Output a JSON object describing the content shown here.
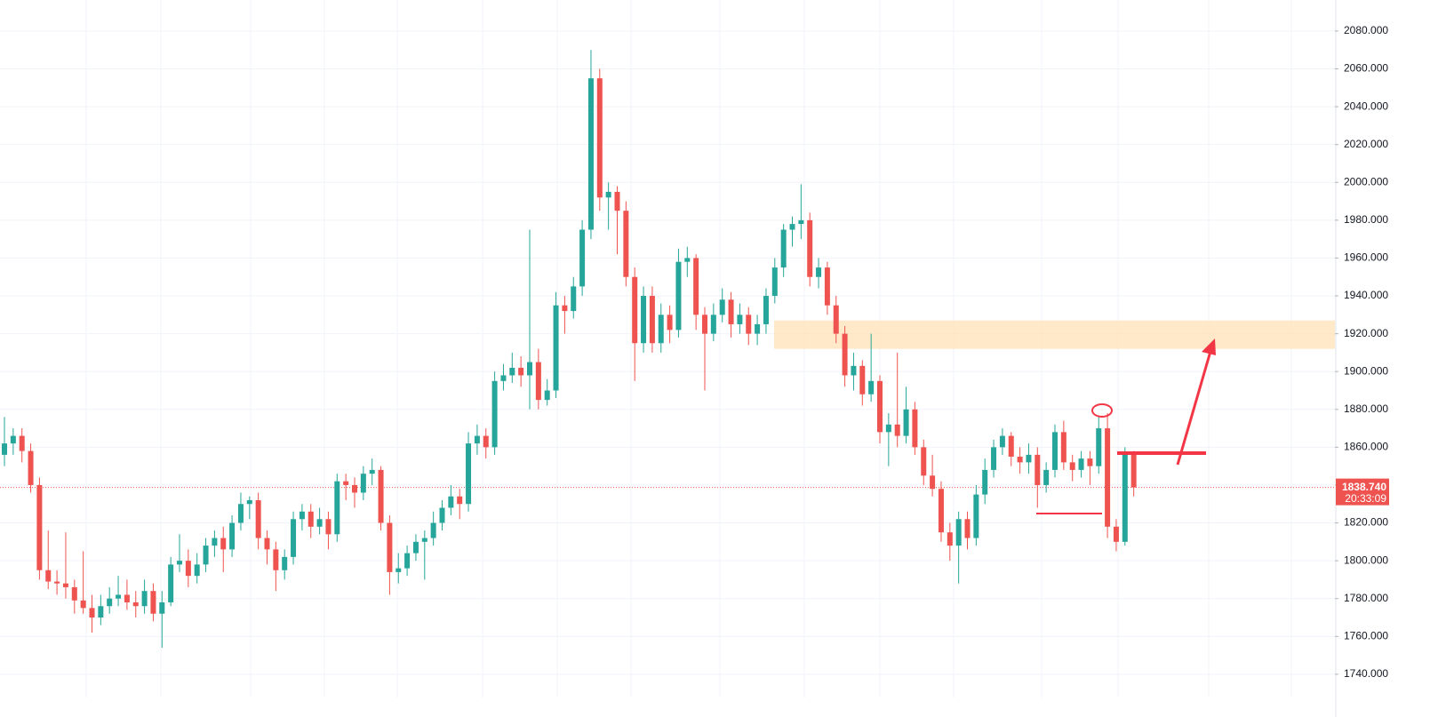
{
  "chart_data": {
    "type": "candlestick",
    "up_color": "#26a69a",
    "down_color": "#ef5350",
    "ylim": [
      1717.4,
      2096.4
    ],
    "yticks": [
      {
        "value": 1740,
        "label": "1740.000"
      },
      {
        "value": 1760,
        "label": "1760.000"
      },
      {
        "value": 1780,
        "label": "1780.000"
      },
      {
        "value": 1800,
        "label": "1800.000"
      },
      {
        "value": 1820,
        "label": "1820.000"
      },
      {
        "value": 1840,
        "label": "1840.000"
      },
      {
        "value": 1860,
        "label": "1860.000"
      },
      {
        "value": 1880,
        "label": "1880.000"
      },
      {
        "value": 1900,
        "label": "1900.000"
      },
      {
        "value": 1920,
        "label": "1920.000"
      },
      {
        "value": 1940,
        "label": "1940.000"
      },
      {
        "value": 1960,
        "label": "1960.000"
      },
      {
        "value": 1980,
        "label": "1980.000"
      },
      {
        "value": 2000,
        "label": "2000.000"
      },
      {
        "value": 2020,
        "label": "2020.000"
      },
      {
        "value": 2040,
        "label": "2040.000"
      },
      {
        "value": 2060,
        "label": "2060.000"
      },
      {
        "value": 2080,
        "label": "2080.000"
      }
    ],
    "grid": true,
    "last_price": {
      "value": 1838.74,
      "label": "1838.740"
    },
    "countdown": "20:33:09",
    "zone": [
      1912,
      1927
    ],
    "ohlc": [
      [
        1856,
        1876,
        1850,
        1862
      ],
      [
        1862,
        1870,
        1856,
        1866
      ],
      [
        1866,
        1870,
        1852,
        1858
      ],
      [
        1858,
        1862,
        1836,
        1840
      ],
      [
        1840,
        1844,
        1790,
        1795
      ],
      [
        1795,
        1816,
        1785,
        1789
      ],
      [
        1789,
        1795,
        1782,
        1788
      ],
      [
        1788,
        1815,
        1780,
        1786
      ],
      [
        1786,
        1790,
        1772,
        1779
      ],
      [
        1779,
        1805,
        1772,
        1775
      ],
      [
        1775,
        1782,
        1762,
        1770
      ],
      [
        1770,
        1782,
        1766,
        1776
      ],
      [
        1776,
        1786,
        1772,
        1780
      ],
      [
        1780,
        1792,
        1776,
        1782
      ],
      [
        1782,
        1790,
        1774,
        1778
      ],
      [
        1778,
        1784,
        1770,
        1776
      ],
      [
        1776,
        1790,
        1772,
        1784
      ],
      [
        1784,
        1788,
        1768,
        1772
      ],
      [
        1772,
        1784,
        1754,
        1778
      ],
      [
        1778,
        1802,
        1776,
        1798
      ],
      [
        1798,
        1814,
        1794,
        1800
      ],
      [
        1800,
        1806,
        1786,
        1792
      ],
      [
        1792,
        1804,
        1788,
        1798
      ],
      [
        1798,
        1812,
        1794,
        1808
      ],
      [
        1808,
        1816,
        1802,
        1812
      ],
      [
        1812,
        1818,
        1794,
        1806
      ],
      [
        1806,
        1824,
        1802,
        1820
      ],
      [
        1820,
        1836,
        1816,
        1830
      ],
      [
        1830,
        1834,
        1822,
        1832
      ],
      [
        1832,
        1836,
        1806,
        1812
      ],
      [
        1812,
        1816,
        1798,
        1806
      ],
      [
        1806,
        1810,
        1784,
        1795
      ],
      [
        1795,
        1806,
        1790,
        1802
      ],
      [
        1802,
        1826,
        1798,
        1822
      ],
      [
        1822,
        1830,
        1816,
        1826
      ],
      [
        1826,
        1830,
        1812,
        1818
      ],
      [
        1818,
        1828,
        1814,
        1822
      ],
      [
        1822,
        1826,
        1806,
        1814
      ],
      [
        1814,
        1846,
        1810,
        1842
      ],
      [
        1842,
        1846,
        1832,
        1840
      ],
      [
        1840,
        1844,
        1828,
        1836
      ],
      [
        1836,
        1850,
        1832,
        1846
      ],
      [
        1846,
        1854,
        1840,
        1848
      ],
      [
        1848,
        1850,
        1816,
        1820
      ],
      [
        1820,
        1824,
        1782,
        1794
      ],
      [
        1794,
        1804,
        1788,
        1796
      ],
      [
        1796,
        1808,
        1792,
        1804
      ],
      [
        1804,
        1814,
        1800,
        1810
      ],
      [
        1810,
        1816,
        1790,
        1812
      ],
      [
        1812,
        1826,
        1808,
        1820
      ],
      [
        1820,
        1832,
        1816,
        1828
      ],
      [
        1828,
        1840,
        1824,
        1834
      ],
      [
        1834,
        1838,
        1822,
        1830
      ],
      [
        1830,
        1868,
        1826,
        1862
      ],
      [
        1862,
        1872,
        1856,
        1866
      ],
      [
        1866,
        1870,
        1854,
        1860
      ],
      [
        1860,
        1900,
        1856,
        1895
      ],
      [
        1895,
        1904,
        1890,
        1898
      ],
      [
        1898,
        1910,
        1894,
        1902
      ],
      [
        1902,
        1908,
        1892,
        1898
      ],
      [
        1898,
        1975,
        1880,
        1905
      ],
      [
        1905,
        1912,
        1880,
        1885
      ],
      [
        1885,
        1896,
        1882,
        1890
      ],
      [
        1890,
        1942,
        1886,
        1935
      ],
      [
        1935,
        1940,
        1920,
        1932
      ],
      [
        1932,
        1950,
        1928,
        1945
      ],
      [
        1945,
        1980,
        1940,
        1975
      ],
      [
        1975,
        2070,
        1970,
        2055
      ],
      [
        2055,
        2060,
        1985,
        1992
      ],
      [
        1992,
        2000,
        1975,
        1995
      ],
      [
        1995,
        1998,
        1962,
        1985
      ],
      [
        1985,
        1990,
        1945,
        1950
      ],
      [
        1950,
        1955,
        1895,
        1915
      ],
      [
        1915,
        1945,
        1910,
        1940
      ],
      [
        1940,
        1945,
        1910,
        1915
      ],
      [
        1915,
        1936,
        1910,
        1930
      ],
      [
        1930,
        1935,
        1915,
        1922
      ],
      [
        1922,
        1965,
        1918,
        1958
      ],
      [
        1958,
        1966,
        1950,
        1960
      ],
      [
        1960,
        1962,
        1922,
        1930
      ],
      [
        1930,
        1934,
        1890,
        1920
      ],
      [
        1920,
        1936,
        1916,
        1930
      ],
      [
        1930,
        1944,
        1926,
        1938
      ],
      [
        1938,
        1942,
        1918,
        1925
      ],
      [
        1925,
        1936,
        1920,
        1930
      ],
      [
        1930,
        1934,
        1914,
        1920
      ],
      [
        1920,
        1930,
        1914,
        1925
      ],
      [
        1925,
        1944,
        1920,
        1940
      ],
      [
        1940,
        1960,
        1936,
        1955
      ],
      [
        1955,
        1978,
        1950,
        1975
      ],
      [
        1975,
        1982,
        1966,
        1978
      ],
      [
        1978,
        1999,
        1970,
        1980
      ],
      [
        1980,
        1984,
        1945,
        1950
      ],
      [
        1950,
        1960,
        1944,
        1955
      ],
      [
        1955,
        1958,
        1930,
        1935
      ],
      [
        1935,
        1940,
        1915,
        1920
      ],
      [
        1920,
        1924,
        1892,
        1898
      ],
      [
        1898,
        1910,
        1890,
        1903
      ],
      [
        1903,
        1906,
        1882,
        1888
      ],
      [
        1888,
        1920,
        1884,
        1895
      ],
      [
        1895,
        1898,
        1862,
        1868
      ],
      [
        1868,
        1878,
        1850,
        1872
      ],
      [
        1872,
        1910,
        1860,
        1866
      ],
      [
        1866,
        1892,
        1862,
        1880
      ],
      [
        1880,
        1884,
        1856,
        1860
      ],
      [
        1860,
        1864,
        1840,
        1845
      ],
      [
        1845,
        1856,
        1834,
        1838
      ],
      [
        1838,
        1842,
        1810,
        1815
      ],
      [
        1815,
        1820,
        1800,
        1808
      ],
      [
        1808,
        1826,
        1788,
        1822
      ],
      [
        1822,
        1826,
        1806,
        1812
      ],
      [
        1812,
        1840,
        1808,
        1835
      ],
      [
        1835,
        1854,
        1830,
        1848
      ],
      [
        1848,
        1864,
        1844,
        1860
      ],
      [
        1860,
        1870,
        1856,
        1866
      ],
      [
        1866,
        1868,
        1850,
        1855
      ],
      [
        1855,
        1860,
        1846,
        1852
      ],
      [
        1852,
        1862,
        1846,
        1856
      ],
      [
        1856,
        1860,
        1828,
        1840
      ],
      [
        1840,
        1852,
        1836,
        1848
      ],
      [
        1848,
        1872,
        1844,
        1868
      ],
      [
        1868,
        1874,
        1848,
        1852
      ],
      [
        1852,
        1856,
        1842,
        1848
      ],
      [
        1848,
        1858,
        1844,
        1854
      ],
      [
        1854,
        1858,
        1840,
        1850
      ],
      [
        1850,
        1876,
        1846,
        1870
      ],
      [
        1870,
        1878,
        1812,
        1818
      ],
      [
        1818,
        1822,
        1805,
        1810
      ],
      [
        1810,
        1860,
        1808,
        1856
      ],
      [
        1856,
        1858,
        1834,
        1838.74
      ]
    ]
  }
}
